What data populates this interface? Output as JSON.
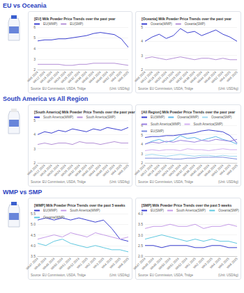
{
  "headers": [
    "EU vs Oceania",
    "South America vs All Region",
    "WMP vs SMP"
  ],
  "chart_data": [
    {
      "type": "line",
      "title": "[EU] Milk Powder Price Trends over the past year",
      "categories": [
        "Wk8 2024",
        "Wk12 2024",
        "Wk16 2024",
        "Wk20 2024",
        "Wk24 2024",
        "Wk28 2024",
        "Wk32 2024",
        "Wk36 2024",
        "Wk40 2024",
        "Wk44 2024",
        "Wk48 2024",
        "Wk52 2024",
        "Wk4 2025",
        "Wk8 2025"
      ],
      "series": [
        {
          "name": "EU(WMP)",
          "color": "#3a3fd0",
          "values": [
            4.7,
            4.8,
            4.8,
            4.9,
            4.9,
            5.0,
            5.1,
            5.2,
            5.4,
            5.5,
            5.4,
            5.3,
            4.9,
            4.1
          ]
        },
        {
          "name": "EU(SMP)",
          "color": "#b48fd6",
          "values": [
            2.5,
            2.5,
            2.5,
            2.5,
            2.4,
            2.4,
            2.5,
            2.5,
            2.6,
            2.6,
            2.6,
            2.6,
            2.5,
            2.4
          ]
        }
      ],
      "ylim": [
        2,
        6
      ],
      "yticks": [
        2,
        3,
        4,
        5,
        6
      ],
      "grid": true,
      "legend": "top",
      "annotations": [
        "Source: EU Commission, USDA, Tridge",
        "(Unit: USD/kg)"
      ]
    },
    {
      "type": "line",
      "title": "[Oceania] Milk Powder Price Trends over the past year",
      "categories": [
        "Wk8 2024",
        "Wk12 2024",
        "Wk16 2024",
        "Wk20 2024",
        "Wk24 2024",
        "Wk28 2024",
        "Wk32 2024",
        "Wk36 2024",
        "Wk40 2024",
        "Wk44 2024",
        "Wk48 2024",
        "Wk52 2024",
        "Wk4 2025",
        "Wk8 2025"
      ],
      "series": [
        {
          "name": "Oceania(WMP)",
          "color": "#3a3fd0",
          "values": [
            4.0,
            4.3,
            4.5,
            4.2,
            4.4,
            4.9,
            4.6,
            4.7,
            4.4,
            4.6,
            4.8,
            4.5,
            4.3,
            4.0
          ]
        },
        {
          "name": "Oceania(SMP)",
          "color": "#b48fd6",
          "values": [
            2.8,
            2.9,
            2.8,
            2.7,
            2.8,
            2.9,
            2.8,
            2.7,
            2.8,
            2.8,
            2.7,
            2.8,
            2.7,
            2.7
          ]
        }
      ],
      "ylim": [
        2,
        5
      ],
      "yticks": [
        2,
        3,
        4,
        5
      ],
      "grid": true,
      "legend": "top",
      "annotations": [
        "Source: EU Commission, USDA, Tridge",
        "(Unit: USD/kg)"
      ]
    },
    {
      "type": "line",
      "title": "[South America] Milk Powder Price Trends over the past year",
      "categories": [
        "Wk8 2024",
        "Wk12 2024",
        "Wk16 2024",
        "Wk20 2024",
        "Wk24 2024",
        "Wk28 2024",
        "Wk32 2024",
        "Wk36 2024",
        "Wk40 2024",
        "Wk44 2024",
        "Wk48 2024",
        "Wk52 2024",
        "Wk4 2025",
        "Wk8 2025"
      ],
      "series": [
        {
          "name": "South America(WMP)",
          "color": "#3a3fd0",
          "values": [
            4.0,
            4.2,
            4.1,
            4.3,
            4.2,
            4.4,
            4.3,
            4.2,
            4.4,
            4.3,
            4.5,
            4.4,
            4.3,
            4.5
          ]
        },
        {
          "name": "South America(SMP)",
          "color": "#b48fd6",
          "values": [
            3.3,
            3.4,
            3.3,
            3.4,
            3.4,
            3.3,
            3.5,
            3.4,
            3.4,
            3.3,
            3.4,
            3.5,
            3.4,
            3.4
          ]
        }
      ],
      "ylim": [
        2,
        5
      ],
      "yticks": [
        2,
        3,
        4,
        5
      ],
      "grid": true,
      "legend": "top",
      "annotations": [
        "Source: EU Commission, USDA, Tridge",
        "(Unit: USD/kg)"
      ]
    },
    {
      "type": "line",
      "title": "[All Region] Milk Powder Price Trends over the past year",
      "categories": [
        "Wk8 2024",
        "Wk12 2024",
        "Wk16 2024",
        "Wk20 2024",
        "Wk24 2024",
        "Wk28 2024",
        "Wk32 2024",
        "Wk36 2024",
        "Wk40 2024",
        "Wk44 2024",
        "Wk48 2024",
        "Wk52 2024",
        "Wk4 2025",
        "Wk8 2025"
      ],
      "series": [
        {
          "name": "EU(WMP)",
          "color": "#3a3fd0",
          "values": [
            4.7,
            4.8,
            4.8,
            4.9,
            4.9,
            5.0,
            5.1,
            5.2,
            5.4,
            5.5,
            5.4,
            5.3,
            4.9,
            4.1
          ]
        },
        {
          "name": "Oceania(WMP)",
          "color": "#5fb7e8",
          "values": [
            4.0,
            4.3,
            4.5,
            4.2,
            4.4,
            4.9,
            4.6,
            4.7,
            4.4,
            4.6,
            4.8,
            4.5,
            4.3,
            4.0
          ]
        },
        {
          "name": "Oceania(SMP)",
          "color": "#a0d8f0",
          "values": [
            2.8,
            2.9,
            2.8,
            2.7,
            2.8,
            2.9,
            2.8,
            2.7,
            2.8,
            2.8,
            2.7,
            2.8,
            2.7,
            2.7
          ]
        },
        {
          "name": "South America(WMP)",
          "color": "#9a7fe0",
          "values": [
            4.0,
            4.2,
            4.1,
            4.3,
            4.2,
            4.4,
            4.3,
            4.2,
            4.4,
            4.3,
            4.5,
            4.4,
            4.3,
            4.5
          ]
        },
        {
          "name": "South America(SMP)",
          "color": "#d2aef0",
          "values": [
            3.3,
            3.4,
            3.3,
            3.4,
            3.4,
            3.3,
            3.5,
            3.4,
            3.4,
            3.3,
            3.4,
            3.5,
            3.4,
            3.4
          ]
        },
        {
          "name": "EU(SMP)",
          "color": "#7f8fe0",
          "values": [
            2.5,
            2.5,
            2.5,
            2.5,
            2.4,
            2.4,
            2.5,
            2.5,
            2.6,
            2.6,
            2.6,
            2.6,
            2.5,
            2.4
          ]
        }
      ],
      "ylim": [
        2,
        6
      ],
      "yticks": [
        2,
        3,
        4,
        5,
        6
      ],
      "grid": true,
      "legend": "top",
      "annotations": [
        "Source: EU Commission, USDA, Tridge",
        "(Unit: USD/kg)"
      ]
    },
    {
      "type": "line",
      "title": "[WMP] Milk Powder Price Trends over the past 5 weeks",
      "categories": [
        "Wk47 2024",
        "Wk48 2024",
        "Wk49 2024",
        "Wk50 2024",
        "Wk51 2024",
        "Wk52 2024",
        "Wk1 2025",
        "Wk2 2025",
        "Wk3 2025",
        "Wk4 2025",
        "Wk5 2025",
        "Wk6 2025"
      ],
      "series": [
        {
          "name": "EU(WMP)",
          "color": "#3a3fd0",
          "values": [
            5.2,
            5.3,
            5.2,
            5.3,
            5.2,
            5.3,
            5.2,
            5.1,
            5.2,
            4.8,
            4.3,
            4.2
          ]
        },
        {
          "name": "South America(WMP)",
          "color": "#c59be8",
          "values": [
            4.3,
            4.4,
            4.5,
            4.4,
            4.6,
            4.5,
            4.4,
            4.6,
            4.5,
            4.4,
            4.3,
            4.4
          ]
        },
        {
          "name": "Oceania(WMP)",
          "color": "#5fc8e0",
          "values": [
            4.1,
            4.0,
            4.2,
            4.3,
            4.1,
            4.0,
            3.9,
            4.0,
            3.9,
            3.8,
            3.8,
            3.7
          ]
        }
      ],
      "ylim": [
        3.5,
        5.5
      ],
      "yticks": [
        3.5,
        {
          "value": 4,
          "label": "4.0"
        },
        4.5,
        {
          "value": 5,
          "label": "5.0"
        },
        5.5
      ],
      "grid": true,
      "legend": "top",
      "annotations": [
        "Source: EU Commission, USDA, Tridge",
        "(Unit: USD/kg)"
      ]
    },
    {
      "type": "line",
      "title": "[SMP] Milk Powder Price Trends over the past 5 weeks",
      "categories": [
        "Wk47 2024",
        "Wk48 2024",
        "Wk49 2024",
        "Wk50 2024",
        "Wk51 2024",
        "Wk52 2024",
        "Wk1 2025",
        "Wk2 2025",
        "Wk3 2025",
        "Wk4 2025",
        "Wk5 2025",
        "Wk6 2025"
      ],
      "series": [
        {
          "name": "EU(SMP)",
          "color": "#3a3fd0",
          "values": [
            2.5,
            2.5,
            2.4,
            2.5,
            2.5,
            2.5,
            2.4,
            2.4,
            2.5,
            2.5,
            2.4,
            2.4
          ]
        },
        {
          "name": "South America(SMP)",
          "color": "#c59be8",
          "values": [
            3.3,
            3.4,
            3.4,
            3.5,
            3.4,
            3.4,
            3.5,
            3.3,
            3.4,
            3.4,
            3.5,
            3.4
          ]
        },
        {
          "name": "Oceania(SMP)",
          "color": "#5fc8e0",
          "values": [
            2.8,
            2.9,
            3.0,
            2.9,
            2.8,
            2.7,
            2.8,
            2.7,
            2.8,
            2.7,
            2.7,
            2.6
          ]
        }
      ],
      "ylim": [
        2,
        4
      ],
      "yticks": [
        {
          "value": 2,
          "label": "2.0"
        },
        2.5,
        {
          "value": 3,
          "label": "3.0"
        },
        3.5,
        {
          "value": 4,
          "label": "4.0"
        }
      ],
      "grid": true,
      "legend": "top",
      "annotations": [
        "Source: EU Commission, USDA, Tridge",
        "(Unit: USD/kg)"
      ]
    }
  ]
}
